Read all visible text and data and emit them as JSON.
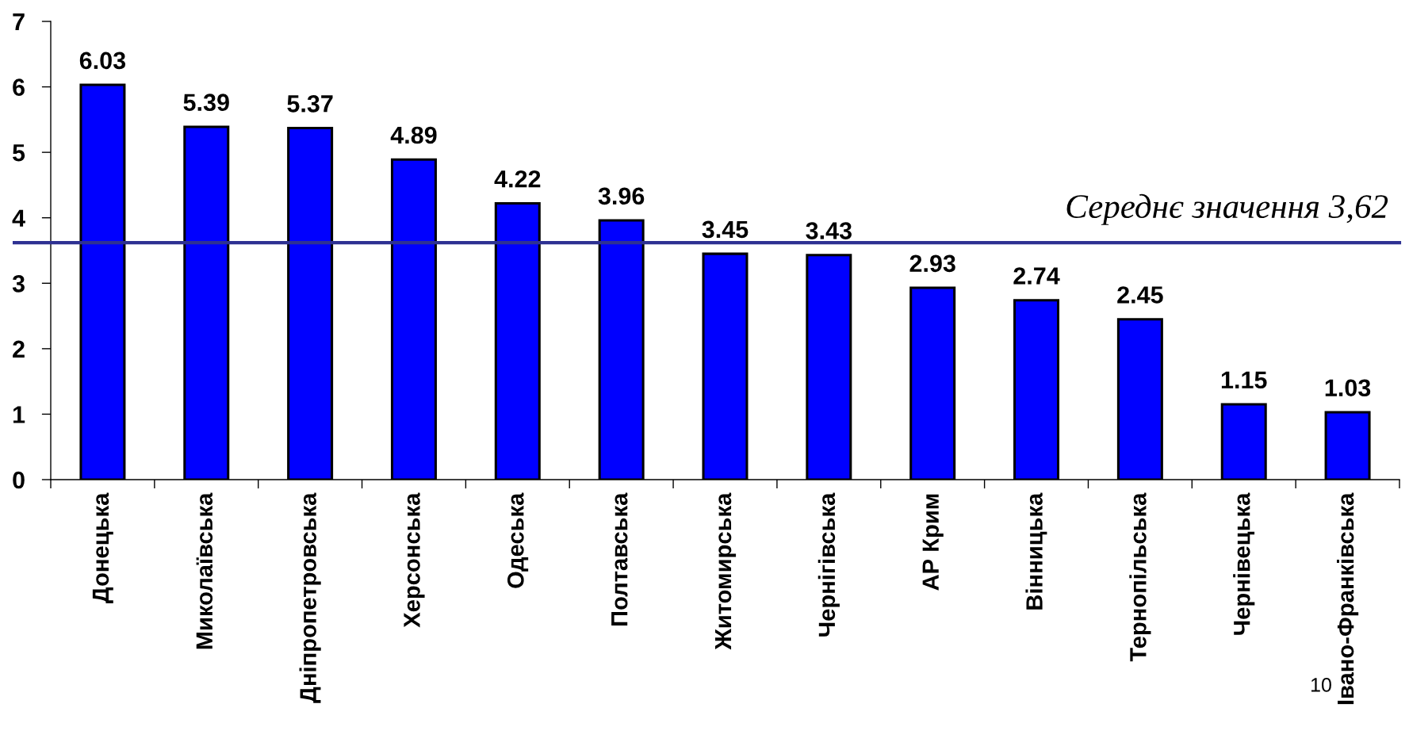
{
  "chart_data": {
    "type": "bar",
    "categories": [
      "Донецька",
      "Миколаївська",
      "Дніпропетровська",
      "Херсонська",
      "Одеська",
      "Полтавська",
      "Житомирська",
      "Чернігівська",
      "АР Крим",
      "Вінницька",
      "Тернопільська",
      "Чернівецька",
      "Івано-Франківська"
    ],
    "values": [
      6.03,
      5.39,
      5.37,
      4.89,
      4.22,
      3.96,
      3.45,
      3.43,
      2.93,
      2.74,
      2.45,
      1.15,
      1.03
    ],
    "color": "#0000ff",
    "ylim": [
      0,
      7
    ],
    "yticks": [
      0,
      1,
      2,
      3,
      4,
      5,
      6,
      7
    ],
    "data_labels": true,
    "ref_lines": [
      {
        "axis": "y",
        "value": 3.62,
        "label": "Середнє значення 3,62",
        "color": "#2e3192",
        "line_style": "solid"
      }
    ],
    "annotations": [
      "10"
    ]
  }
}
